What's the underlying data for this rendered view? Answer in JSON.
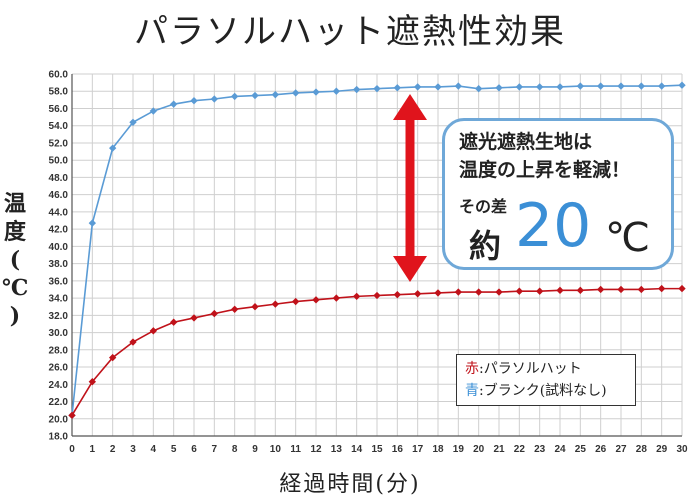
{
  "title": "パラソルハット遮熱性効果",
  "callout": {
    "line1": "遮光遮熱生地は",
    "line2": "温度の上昇を軽減！",
    "diff_label": "その差",
    "approx": "約",
    "value": "20",
    "unit": "℃"
  },
  "legend": {
    "red_key": "赤",
    "red_label": ":パラソルハット",
    "blue_key": "青",
    "blue_label": ":ブランク(試料なし)"
  },
  "colors": {
    "red": "#c0121a",
    "blue": "#5a9bd5",
    "arrow": "#e0141c",
    "callout_border": "#6fa8d8"
  },
  "chart_data": {
    "type": "line",
    "title": "パラソルハット遮熱性効果",
    "xlabel": "経過時間(分)",
    "ylabel": "温度(℃)",
    "ylabel_chars": [
      "温",
      "度",
      "(",
      "℃",
      ")"
    ],
    "xlim": [
      0,
      30
    ],
    "ylim": [
      18.0,
      60.0
    ],
    "ytick_step": 2.0,
    "grid": true,
    "legend_position": "bottom-right",
    "x": [
      0,
      1,
      2,
      3,
      4,
      5,
      6,
      7,
      8,
      9,
      10,
      11,
      12,
      13,
      14,
      15,
      16,
      17,
      18,
      19,
      20,
      21,
      22,
      23,
      24,
      25,
      26,
      27,
      28,
      29,
      30
    ],
    "series": [
      {
        "name": "ブランク(試料なし)",
        "color": "#5a9bd5",
        "values": [
          20.4,
          42.7,
          51.4,
          54.4,
          55.7,
          56.5,
          56.9,
          57.1,
          57.4,
          57.5,
          57.6,
          57.8,
          57.9,
          58.0,
          58.2,
          58.3,
          58.4,
          58.5,
          58.5,
          58.6,
          58.3,
          58.4,
          58.5,
          58.5,
          58.5,
          58.6,
          58.6,
          58.6,
          58.6,
          58.6,
          58.7
        ]
      },
      {
        "name": "パラソルハット",
        "color": "#c0121a",
        "values": [
          20.4,
          24.3,
          27.1,
          28.9,
          30.2,
          31.2,
          31.7,
          32.2,
          32.7,
          33.0,
          33.3,
          33.6,
          33.8,
          34.0,
          34.2,
          34.3,
          34.4,
          34.5,
          34.6,
          34.7,
          34.7,
          34.7,
          34.8,
          34.8,
          34.9,
          34.9,
          35.0,
          35.0,
          35.0,
          35.1,
          35.1
        ]
      }
    ]
  }
}
